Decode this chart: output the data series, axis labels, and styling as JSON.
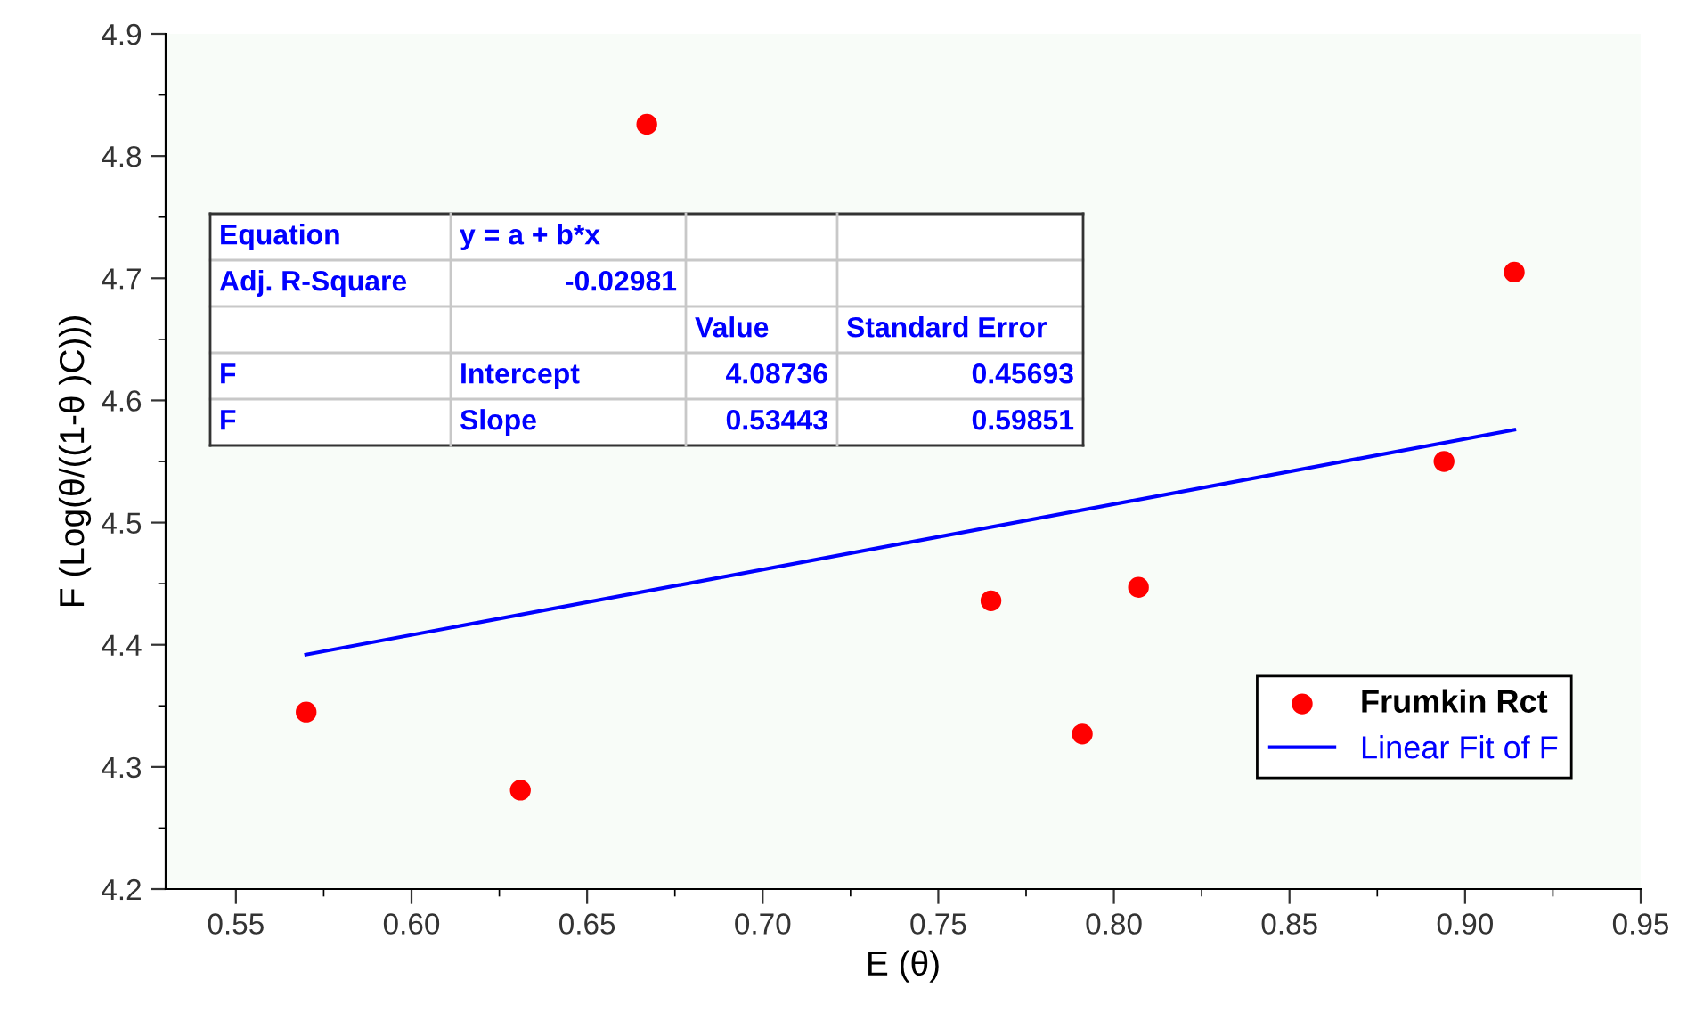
{
  "chart_data": {
    "type": "scatter",
    "xlabel": "E (θ)",
    "ylabel": "F (Log(θ/((1-θ )C)))",
    "xlim": [
      0.53,
      0.95
    ],
    "xticks": [
      {
        "value": 0.55,
        "label": "0.55"
      },
      {
        "value": 0.6,
        "label": "0.60"
      },
      {
        "value": 0.65,
        "label": "0.65"
      },
      {
        "value": 0.7,
        "label": "0.70"
      },
      {
        "value": 0.75,
        "label": "0.75"
      },
      {
        "value": 0.8,
        "label": "0.80"
      },
      {
        "value": 0.85,
        "label": "0.85"
      },
      {
        "value": 0.9,
        "label": "0.90"
      },
      {
        "value": 0.95,
        "label": "0.95"
      }
    ],
    "ylim": [
      4.2,
      4.9
    ],
    "yticks": [
      4.2,
      4.3,
      4.4,
      4.5,
      4.6,
      4.7,
      4.8,
      4.9
    ],
    "legend": "bottom right",
    "grid": false,
    "series": [
      {
        "name": "Frumkin Rct",
        "marker": "circle",
        "color": "#ff0000",
        "x": [
          0.57,
          0.631,
          0.667,
          0.765,
          0.791,
          0.807,
          0.894,
          0.914
        ],
        "values": [
          4.345,
          4.281,
          4.826,
          4.436,
          4.327,
          4.447,
          4.55,
          4.705
        ]
      },
      {
        "name": "Linear Fit of F",
        "type": "line",
        "marker": "none",
        "color": "#0000ff",
        "x": [
          0.57,
          0.914
        ],
        "values": [
          4.392,
          4.576
        ]
      }
    ],
    "annotations": [
      "Equation",
      "y = a + b*x",
      "Adj. R-Square",
      "-0.02981",
      "Value",
      "Standard Error",
      "F",
      "Intercept",
      "4.08736",
      "0.45693",
      "F",
      "Slope",
      "0.53443",
      "0.59851"
    ]
  }
}
